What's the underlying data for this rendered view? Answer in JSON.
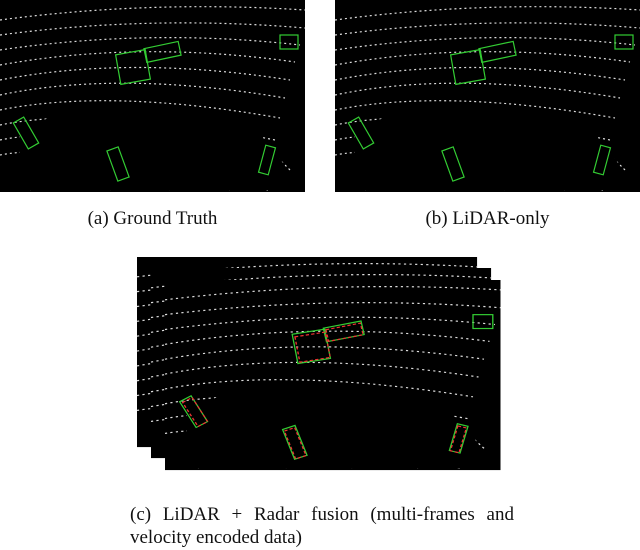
{
  "figures": [
    {
      "caption": "(a) Ground Truth"
    },
    {
      "caption": "(b) LiDAR-only"
    },
    {
      "caption": "(c) LiDAR + Radar fusion (multi-frames and velocity encoded data)"
    }
  ]
}
